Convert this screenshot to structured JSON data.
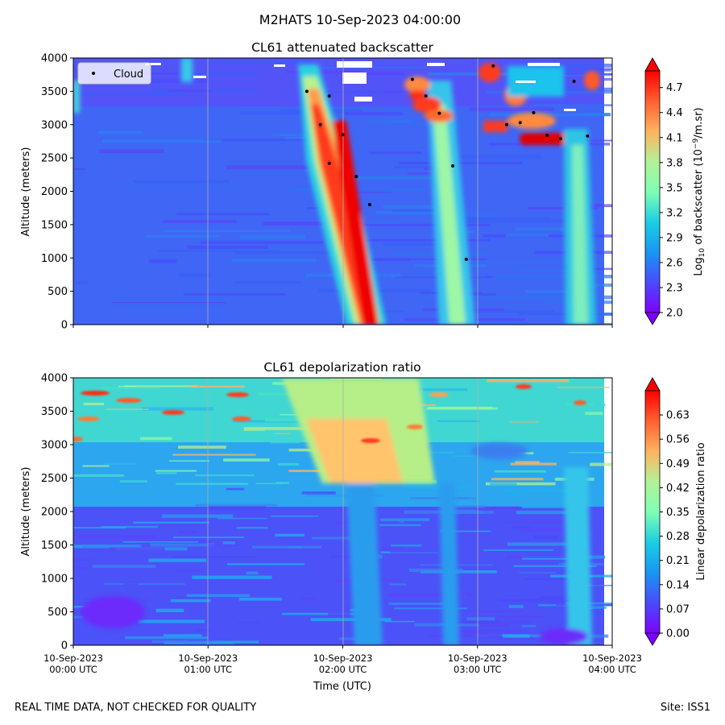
{
  "figure": {
    "suptitle": "M2HATS 10-Sep-2023 04:00:00",
    "footer_left": "REAL TIME DATA, NOT CHECKED FOR QUALITY",
    "footer_right": "Site: ISS1"
  },
  "chart_data": [
    {
      "type": "heatmap",
      "title": "CL61 attenuated backscatter",
      "ylabel": "Altitude (meters)",
      "ylim": [
        0,
        4000
      ],
      "yticks": [
        "0",
        "500",
        "1000",
        "1500",
        "2000",
        "2500",
        "3000",
        "3500",
        "4000"
      ],
      "x_range": [
        "2023-09-10 00:00 UTC",
        "2023-09-10 04:00 UTC"
      ],
      "colorbar": {
        "label_main": "Log",
        "label_sub": "10",
        "label_rest": " of backscatter (10",
        "label_sup": "−9",
        "label_end": "/m.sr)",
        "range": [
          2.0,
          4.9
        ],
        "ticks": [
          "2.0",
          "2.3",
          "2.6",
          "2.9",
          "3.2",
          "3.5",
          "3.8",
          "4.1",
          "4.4",
          "4.7"
        ],
        "colormap": "rainbow"
      },
      "legend": {
        "label": "Cloud",
        "placement": "upper left"
      },
      "cloud_points": [
        {
          "time": "01:44",
          "alt": 3500
        },
        {
          "time": "01:50",
          "alt": 3000
        },
        {
          "time": "01:54",
          "alt": 3430
        },
        {
          "time": "01:54",
          "alt": 2420
        },
        {
          "time": "02:00",
          "alt": 2850
        },
        {
          "time": "02:06",
          "alt": 2220
        },
        {
          "time": "02:12",
          "alt": 1800
        },
        {
          "time": "02:31",
          "alt": 3680
        },
        {
          "time": "02:37",
          "alt": 3430
        },
        {
          "time": "02:43",
          "alt": 3170
        },
        {
          "time": "02:49",
          "alt": 2380
        },
        {
          "time": "02:55",
          "alt": 980
        },
        {
          "time": "03:07",
          "alt": 3880
        },
        {
          "time": "03:13",
          "alt": 3000
        },
        {
          "time": "03:19",
          "alt": 3030
        },
        {
          "time": "03:25",
          "alt": 3180
        },
        {
          "time": "03:31",
          "alt": 2840
        },
        {
          "time": "03:37",
          "alt": 2790
        },
        {
          "time": "03:43",
          "alt": 3650
        },
        {
          "time": "03:49",
          "alt": 2830
        }
      ]
    },
    {
      "type": "heatmap",
      "title": "CL61 depolarization ratio",
      "ylabel": "Altitude (meters)",
      "xlabel": "Time (UTC)",
      "ylim": [
        0,
        4000
      ],
      "yticks": [
        "0",
        "500",
        "1000",
        "1500",
        "2000",
        "2500",
        "3000",
        "3500",
        "4000"
      ],
      "xticks": [
        {
          "line1": "10-Sep-2023",
          "line2": "00:00 UTC"
        },
        {
          "line1": "10-Sep-2023",
          "line2": "01:00 UTC"
        },
        {
          "line1": "10-Sep-2023",
          "line2": "02:00 UTC"
        },
        {
          "line1": "10-Sep-2023",
          "line2": "03:00 UTC"
        },
        {
          "line1": "10-Sep-2023",
          "line2": "04:00 UTC"
        }
      ],
      "colorbar": {
        "label": "Linear depolarization ratio",
        "range": [
          0.0,
          0.7
        ],
        "ticks": [
          "0.00",
          "0.07",
          "0.14",
          "0.21",
          "0.28",
          "0.35",
          "0.42",
          "0.49",
          "0.56",
          "0.63"
        ],
        "colormap": "rainbow"
      }
    }
  ]
}
